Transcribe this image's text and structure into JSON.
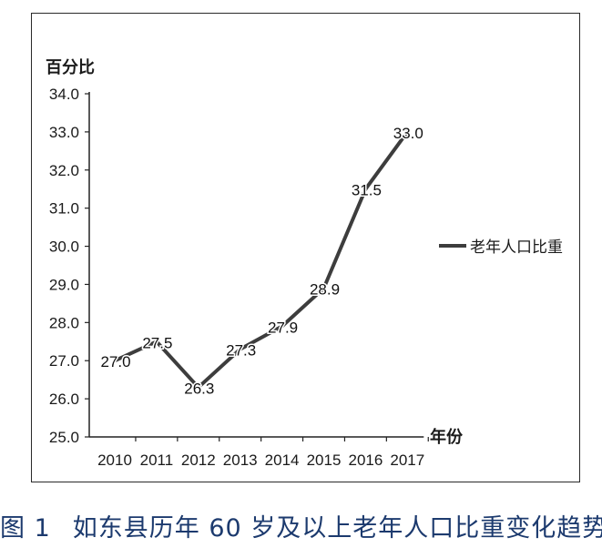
{
  "caption": {
    "figure_number": "图 1",
    "text": "如东县历年 60 岁及以上老年人口比重变化趋势"
  },
  "chart_data": {
    "type": "line",
    "title": "",
    "ylabel": "百分比",
    "xlabel": "年份",
    "ylim": [
      25.0,
      34.0
    ],
    "yticks": [
      "25.0",
      "26.0",
      "27.0",
      "28.0",
      "29.0",
      "30.0",
      "31.0",
      "32.0",
      "33.0",
      "34.0"
    ],
    "categories": [
      "2010",
      "2011",
      "2012",
      "2013",
      "2014",
      "2015",
      "2016",
      "2017"
    ],
    "series": [
      {
        "name": "老年人口比重",
        "values": [
          27.0,
          27.5,
          26.3,
          27.3,
          27.9,
          28.9,
          31.5,
          33.0
        ],
        "labels": [
          "27.0",
          "27.5",
          "26.3",
          "27.3",
          "27.9",
          "28.9",
          "31.5",
          "33.0"
        ],
        "color": "#3d3d3d"
      }
    ],
    "legend_position": "right",
    "grid": false
  }
}
